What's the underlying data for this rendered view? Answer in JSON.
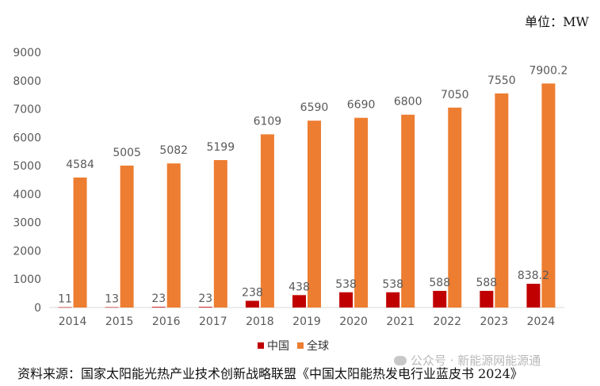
{
  "unit_label": "单位：MW",
  "source_text": "资料来源：国家太阳能光热产业技术创新战略联盟《中国太阳能热发电行业蓝皮书 2024》",
  "watermark_text": "公众号 · 新能源网能源通",
  "colors": {
    "china": "#c00000",
    "global": "#ed7d31",
    "axis": "#d9d9d9",
    "text": "#595959"
  },
  "chart_data": {
    "type": "bar",
    "title": "",
    "xlabel": "",
    "ylabel": "",
    "ylim": [
      0,
      9000
    ],
    "yticks": [
      0,
      1000,
      2000,
      3000,
      4000,
      5000,
      6000,
      7000,
      8000,
      9000
    ],
    "categories": [
      "2014",
      "2015",
      "2016",
      "2017",
      "2018",
      "2019",
      "2020",
      "2021",
      "2022",
      "2023",
      "2024"
    ],
    "series": [
      {
        "name": "中国",
        "values": [
          11,
          13,
          23,
          23,
          238,
          438,
          538,
          538,
          588,
          588,
          838.2
        ],
        "labels": [
          "11",
          "13",
          "23",
          "23",
          "238",
          "438",
          "538",
          "538",
          "588",
          "588",
          "838.2"
        ]
      },
      {
        "name": "全球",
        "values": [
          4584,
          5005,
          5082,
          5199,
          6109,
          6590,
          6690,
          6800,
          7050,
          7550,
          7900.2
        ],
        "labels": [
          "4584",
          "5005",
          "5082",
          "5199",
          "6109",
          "6590",
          "6690",
          "6800",
          "7050",
          "7550",
          "7900.2"
        ]
      }
    ]
  }
}
